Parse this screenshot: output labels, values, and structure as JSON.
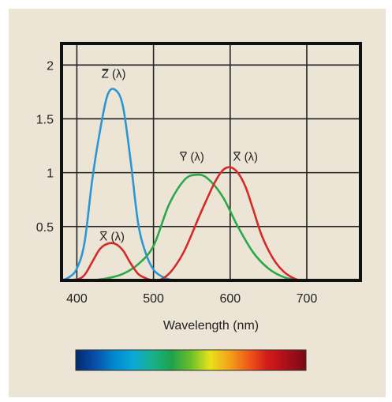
{
  "chart_data": {
    "type": "line",
    "xlabel": "Wavelength (nm)",
    "ylabel": "",
    "xlim": [
      380,
      770
    ],
    "ylim": [
      0,
      2.2
    ],
    "x_ticks": [
      400,
      500,
      600,
      700
    ],
    "x_tick_labels": [
      "400",
      "500",
      "600",
      "700"
    ],
    "y_ticks": [
      0.5,
      1,
      1.5,
      2
    ],
    "y_tick_labels": [
      "0.5",
      "1",
      "1.5",
      "2"
    ],
    "grid": true,
    "legend": "none",
    "series": [
      {
        "name": "Z̄ (λ)",
        "color": "#2a97d4",
        "x": [
          380,
          390,
          400,
          410,
          420,
          430,
          440,
          450,
          460,
          470,
          480,
          490,
          500,
          510,
          520,
          530
        ],
        "y": [
          0.0,
          0.03,
          0.11,
          0.35,
          0.93,
          1.38,
          1.72,
          1.77,
          1.62,
          1.12,
          0.53,
          0.25,
          0.1,
          0.04,
          0.01,
          0.0
        ]
      },
      {
        "name": "Ȳ (λ)",
        "color": "#2aa84a",
        "x": [
          420,
          440,
          460,
          480,
          500,
          520,
          540,
          555,
          570,
          590,
          610,
          630,
          650,
          670,
          690
        ],
        "y": [
          0.0,
          0.02,
          0.06,
          0.15,
          0.32,
          0.7,
          0.93,
          0.98,
          0.95,
          0.78,
          0.5,
          0.26,
          0.11,
          0.03,
          0.0
        ]
      },
      {
        "name": "X̄ (λ)",
        "color": "#d42a2a",
        "x": [
          380,
          400,
          410,
          420,
          430,
          440,
          450,
          460,
          470,
          480,
          490,
          500,
          510,
          520,
          530,
          540,
          550,
          560,
          570,
          580,
          590,
          600,
          610,
          620,
          630,
          640,
          650,
          660,
          670,
          680,
          690
        ],
        "y": [
          0.0,
          0.01,
          0.05,
          0.17,
          0.29,
          0.34,
          0.34,
          0.28,
          0.16,
          0.06,
          0.02,
          0.0,
          0.01,
          0.06,
          0.15,
          0.27,
          0.43,
          0.6,
          0.76,
          0.91,
          1.02,
          1.05,
          1.0,
          0.87,
          0.66,
          0.44,
          0.28,
          0.16,
          0.08,
          0.03,
          0.0
        ]
      }
    ],
    "annotations": [
      {
        "text": "Z (λ)",
        "x": 448,
        "y": 1.88
      },
      {
        "text": "Y (λ)",
        "x": 550,
        "y": 1.11
      },
      {
        "text": "X (λ)",
        "x": 620,
        "y": 1.11
      },
      {
        "text": "X (λ)",
        "x": 446,
        "y": 0.37
      }
    ],
    "spectrum_bar": {
      "colors": [
        "#002a6c",
        "#0a4ea8",
        "#0088cc",
        "#0aa9d6",
        "#1ab08a",
        "#1ea14a",
        "#6cbf2c",
        "#e8e21a",
        "#f3a21a",
        "#ef5a1a",
        "#d41a1a",
        "#a8101a",
        "#7a0a14"
      ]
    }
  }
}
